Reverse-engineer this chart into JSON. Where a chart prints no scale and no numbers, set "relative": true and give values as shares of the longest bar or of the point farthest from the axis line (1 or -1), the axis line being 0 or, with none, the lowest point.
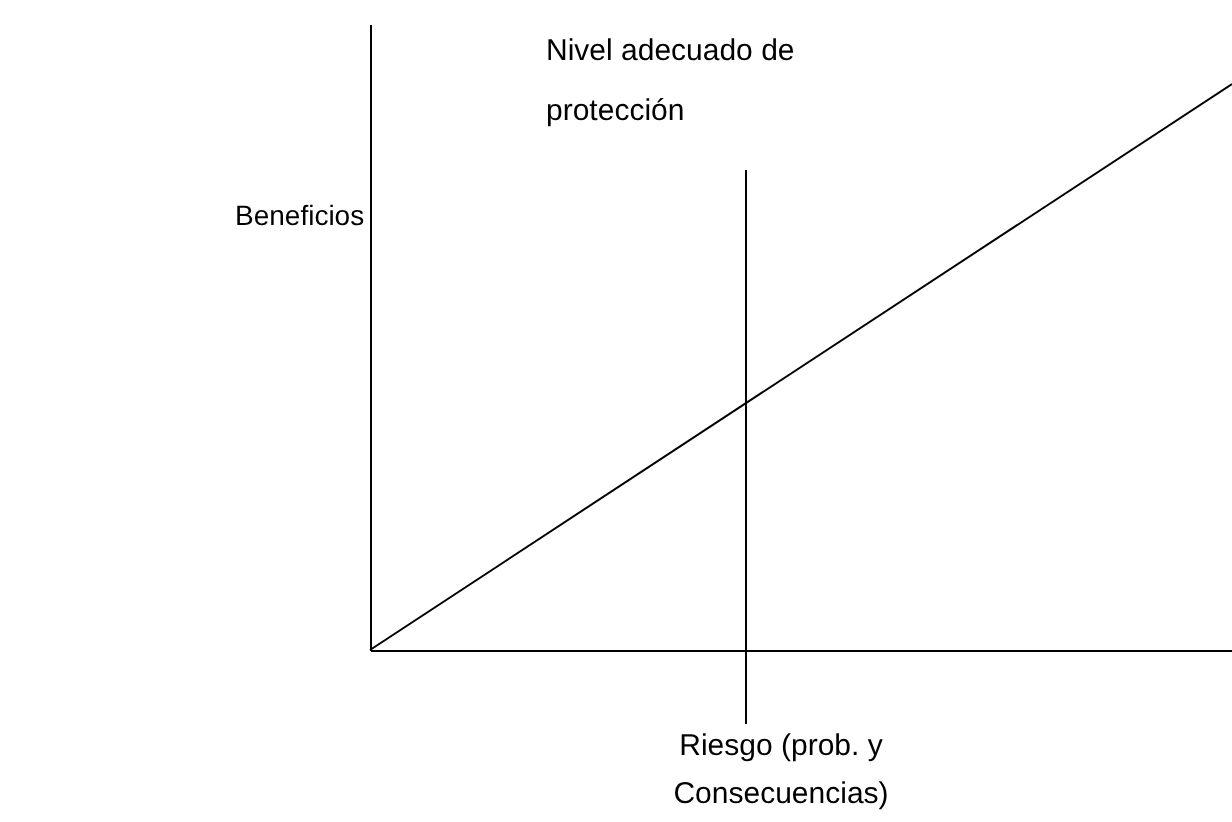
{
  "chart_data": {
    "type": "line",
    "relative": true,
    "categories": [
      null,
      null
    ],
    "series": [
      {
        "color": "#000000",
        "values": [
          0,
          1
        ]
      }
    ],
    "ylabel": "Beneficios",
    "xlabel": "Riesgo (prob. y Consecuencias)",
    "annotations": [
      "Nivel adecuado de protección"
    ]
  }
}
